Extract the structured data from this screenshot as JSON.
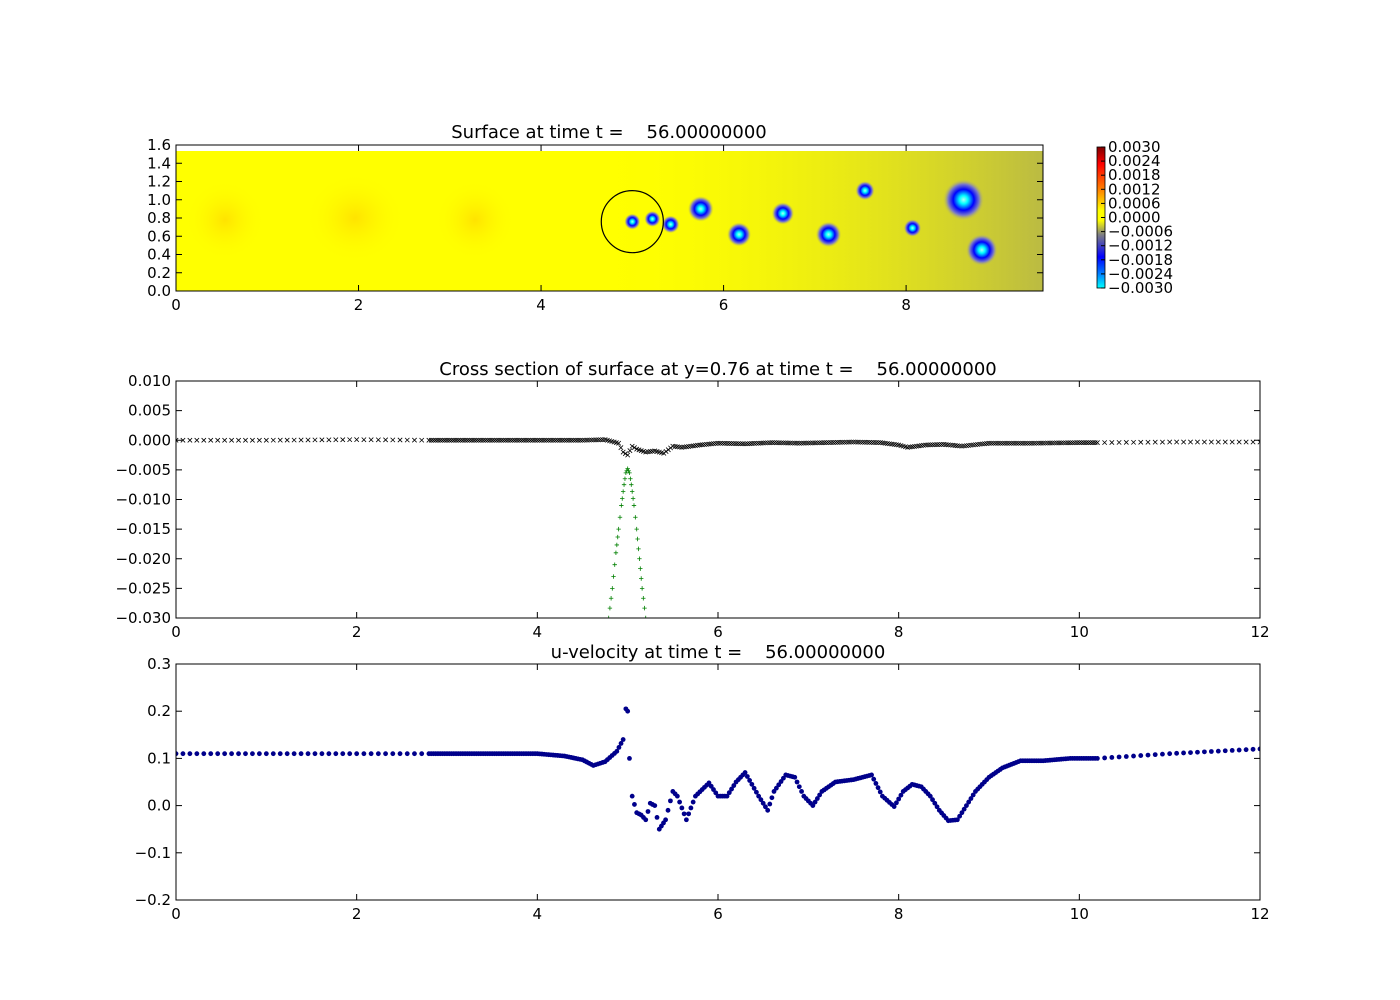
{
  "chart_data": [
    {
      "type": "heatmap",
      "title": "Surface at time t =    56.00000000",
      "xlim": [
        0,
        9.5
      ],
      "ylim": [
        0,
        1.6
      ],
      "xticks": [
        0,
        2,
        4,
        6,
        8
      ],
      "xtick_labels": [
        "0",
        "2",
        "4",
        "6",
        "8"
      ],
      "yticks": [
        0.0,
        0.2,
        0.4,
        0.6,
        0.8,
        1.0,
        1.2,
        1.4,
        1.6
      ],
      "ytick_labels": [
        "0.0",
        "0.2",
        "0.4",
        "0.6",
        "0.8",
        "1.0",
        "1.2",
        "1.4",
        "1.6"
      ],
      "colorbar": {
        "range": [
          -0.003,
          0.003
        ],
        "ticks": [
          0.003,
          0.0024,
          0.0018,
          0.0012,
          0.0006,
          0.0,
          -0.0006,
          -0.0012,
          -0.0018,
          -0.0024,
          -0.003
        ],
        "tick_labels": [
          "0.0030",
          "0.0024",
          "0.0018",
          "0.0012",
          "0.0006",
          "0.0000",
          "−0.0006",
          "−0.0012",
          "−0.0018",
          "−0.0024",
          "−0.0030"
        ]
      },
      "vortices": [
        {
          "x": 5.0,
          "y": 0.76,
          "strength": 0.5
        },
        {
          "x": 5.22,
          "y": 0.79,
          "strength": 0.5
        },
        {
          "x": 5.42,
          "y": 0.73,
          "strength": 0.55
        },
        {
          "x": 5.75,
          "y": 0.9,
          "strength": 0.8
        },
        {
          "x": 6.17,
          "y": 0.62,
          "strength": 0.75
        },
        {
          "x": 6.65,
          "y": 0.85,
          "strength": 0.7
        },
        {
          "x": 7.15,
          "y": 0.62,
          "strength": 0.8
        },
        {
          "x": 7.55,
          "y": 1.1,
          "strength": 0.6
        },
        {
          "x": 8.07,
          "y": 0.69,
          "strength": 0.55
        },
        {
          "x": 8.63,
          "y": 1.0,
          "strength": 1.3
        },
        {
          "x": 8.83,
          "y": 0.45,
          "strength": 1.0
        }
      ],
      "body_circle": {
        "x": 5.0,
        "y": 0.76,
        "r": 0.34
      }
    },
    {
      "type": "scatter",
      "title": "Cross section of surface at y=0.76 at time t =    56.00000000",
      "xlim": [
        0,
        12
      ],
      "ylim": [
        -0.03,
        0.01
      ],
      "xticks": [
        0,
        2,
        4,
        6,
        8,
        10,
        12
      ],
      "xtick_labels": [
        "0",
        "2",
        "4",
        "6",
        "8",
        "10",
        "12"
      ],
      "yticks": [
        0.01,
        0.005,
        0.0,
        -0.005,
        -0.01,
        -0.015,
        -0.02,
        -0.025,
        -0.03
      ],
      "ytick_labels": [
        "0.010",
        "0.005",
        "0.000",
        "−0.005",
        "−0.010",
        "−0.015",
        "−0.020",
        "−0.025",
        "−0.030"
      ],
      "series": [
        {
          "marker": "x",
          "color": "#000000",
          "x": [
            0,
            1,
            2,
            2.8,
            3.5,
            4.0,
            4.5,
            4.75,
            4.9,
            4.95,
            5.0,
            5.05,
            5.1,
            5.2,
            5.3,
            5.4,
            5.5,
            5.6,
            5.8,
            6.0,
            6.3,
            6.6,
            6.9,
            7.2,
            7.5,
            7.8,
            8.0,
            8.1,
            8.3,
            8.5,
            8.7,
            9.0,
            9.5,
            10.0,
            10.2,
            11,
            12
          ],
          "y": [
            0,
            0,
            0.0001,
            0,
            0,
            0,
            0,
            0.0001,
            -0.0005,
            -0.002,
            -0.0025,
            -0.001,
            -0.0015,
            -0.002,
            -0.0018,
            -0.0022,
            -0.001,
            -0.0012,
            -0.0008,
            -0.0005,
            -0.0006,
            -0.0004,
            -0.0005,
            -0.0004,
            -0.0003,
            -0.0004,
            -0.0008,
            -0.0012,
            -0.0008,
            -0.0007,
            -0.001,
            -0.0005,
            -0.0005,
            -0.0004,
            -0.0004,
            -0.0003,
            -0.0003
          ]
        },
        {
          "marker": "+",
          "color": "#008000",
          "x": [
            4.79,
            4.83,
            4.87,
            4.9,
            4.93,
            4.96,
            4.98,
            5.0,
            5.02,
            5.04,
            5.07,
            5.1,
            5.13,
            5.16,
            5.2
          ],
          "y": [
            -0.03,
            -0.025,
            -0.019,
            -0.015,
            -0.011,
            -0.0075,
            -0.0055,
            -0.0048,
            -0.0055,
            -0.0075,
            -0.011,
            -0.015,
            -0.02,
            -0.025,
            -0.03
          ]
        }
      ]
    },
    {
      "type": "scatter",
      "title": "u-velocity at time t =    56.00000000",
      "xlim": [
        0,
        12
      ],
      "ylim": [
        -0.2,
        0.3
      ],
      "xticks": [
        0,
        2,
        4,
        6,
        8,
        10,
        12
      ],
      "xtick_labels": [
        "0",
        "2",
        "4",
        "6",
        "8",
        "10",
        "12"
      ],
      "yticks": [
        0.3,
        0.2,
        0.1,
        0.0,
        -0.1,
        -0.2
      ],
      "ytick_labels": [
        "0.3",
        "0.2",
        "0.1",
        "0.0",
        "−0.1",
        "−0.2"
      ],
      "series": [
        {
          "marker": "o",
          "color": "#00008b",
          "x": [
            0,
            1,
            2,
            2.8,
            3.5,
            4.0,
            4.3,
            4.5,
            4.62,
            4.75,
            4.88,
            4.95,
            4.98,
            5.0,
            5.02,
            5.05,
            5.1,
            5.15,
            5.2,
            5.25,
            5.3,
            5.35,
            5.42,
            5.5,
            5.55,
            5.65,
            5.75,
            5.9,
            6.0,
            6.1,
            6.2,
            6.3,
            6.45,
            6.55,
            6.62,
            6.75,
            6.85,
            6.95,
            7.05,
            7.15,
            7.3,
            7.5,
            7.7,
            7.82,
            7.95,
            8.05,
            8.15,
            8.25,
            8.35,
            8.45,
            8.55,
            8.65,
            8.75,
            8.85,
            9.0,
            9.15,
            9.35,
            9.6,
            9.9,
            10.2,
            11,
            12
          ],
          "y": [
            0.11,
            0.11,
            0.11,
            0.11,
            0.11,
            0.11,
            0.105,
            0.097,
            0.085,
            0.093,
            0.115,
            0.14,
            0.205,
            0.2,
            0.1,
            0.02,
            -0.015,
            -0.02,
            -0.03,
            0.005,
            0.0,
            -0.05,
            -0.03,
            0.03,
            0.02,
            -0.03,
            0.02,
            0.048,
            0.02,
            0.02,
            0.05,
            0.07,
            0.02,
            -0.01,
            0.03,
            0.065,
            0.06,
            0.02,
            0.0,
            0.03,
            0.05,
            0.055,
            0.065,
            0.02,
            -0.002,
            0.03,
            0.045,
            0.04,
            0.02,
            -0.01,
            -0.032,
            -0.03,
            0.0,
            0.03,
            0.06,
            0.08,
            0.095,
            0.095,
            0.1,
            0.1,
            0.11,
            0.12
          ]
        }
      ]
    }
  ]
}
